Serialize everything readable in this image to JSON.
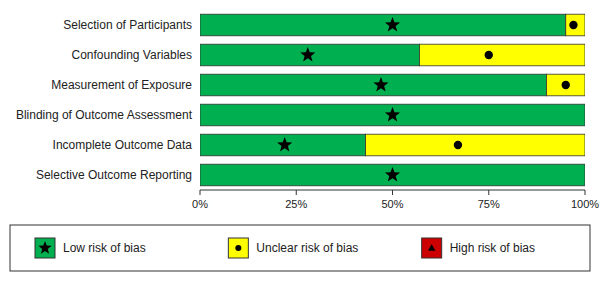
{
  "chart_data": {
    "type": "bar",
    "orientation": "horizontal",
    "stacked": true,
    "categories": [
      "Selection of Participants",
      "Confounding Variables",
      "Measurement of Exposure",
      "Blinding of Outcome Assessment",
      "Incomplete Outcome Data",
      "Selective Outcome Reporting"
    ],
    "series": [
      {
        "name": "Low risk of bias",
        "color": "#00b050",
        "marker": "star",
        "values": [
          95,
          57,
          90,
          100,
          43,
          100
        ],
        "marker_positions": [
          50,
          28,
          47,
          50,
          22,
          50
        ]
      },
      {
        "name": "Unclear risk of bias",
        "color": "#ffff00",
        "marker": "circle",
        "values": [
          5,
          43,
          10,
          0,
          57,
          0
        ],
        "marker_positions": [
          97,
          75,
          95,
          null,
          67,
          null
        ]
      },
      {
        "name": "High risk of bias",
        "color": "#cc0000",
        "marker": "triangle",
        "values": [
          0,
          0,
          0,
          0,
          0,
          0
        ]
      }
    ],
    "xlim": [
      0,
      100
    ],
    "xticks": [
      {
        "value": 0,
        "label": "0%"
      },
      {
        "value": 25,
        "label": "25%"
      },
      {
        "value": 50,
        "label": "50%"
      },
      {
        "value": 75,
        "label": "75%"
      },
      {
        "value": 100,
        "label": "100%"
      }
    ],
    "legend": "bottom"
  }
}
